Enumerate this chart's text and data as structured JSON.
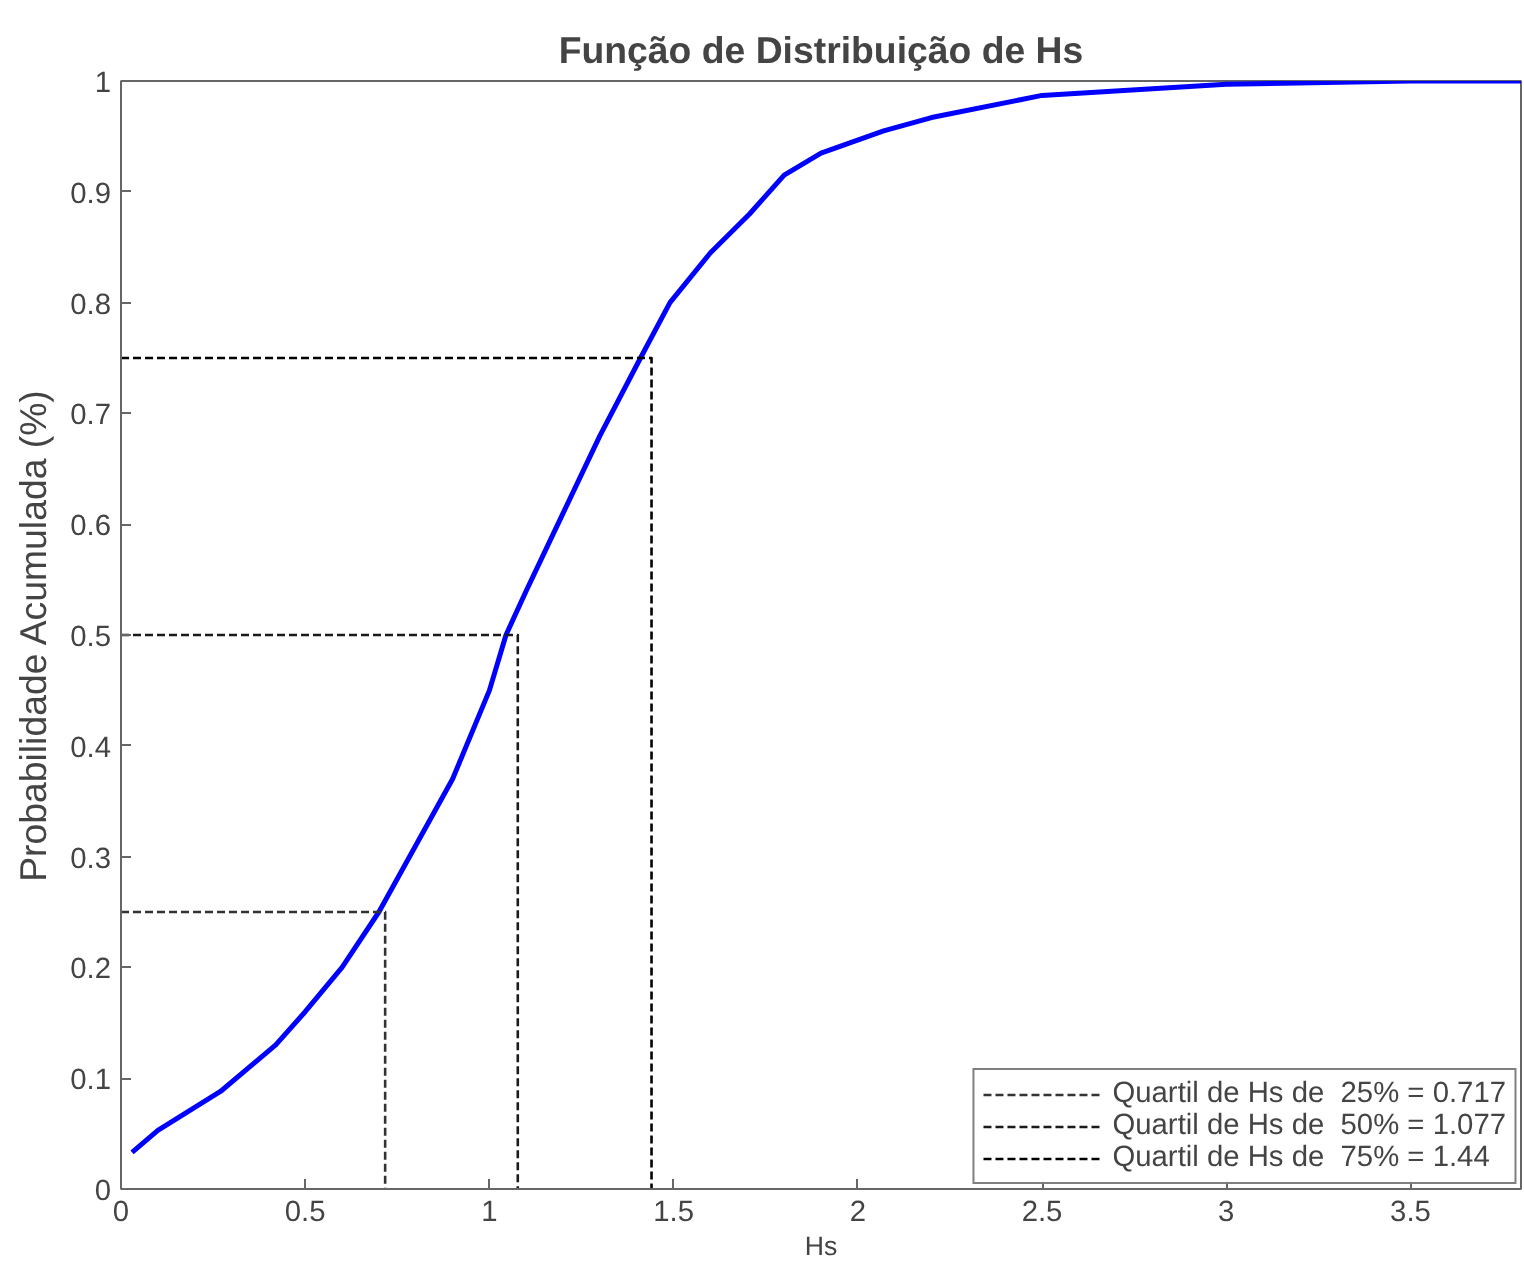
{
  "chart_data": {
    "type": "line",
    "title": "Função de Distribuição de Hs",
    "xlabel": "Hs",
    "ylabel": "Probabilidade Acumulada (%)",
    "xlim": [
      0,
      3.8
    ],
    "ylim": [
      0,
      1
    ],
    "xticks": [
      0,
      0.5,
      1,
      1.5,
      2,
      2.5,
      3,
      3.5
    ],
    "yticks": [
      0,
      0.1,
      0.2,
      0.3,
      0.4,
      0.5,
      0.6,
      0.7,
      0.8,
      0.9,
      1
    ],
    "grid": false,
    "legend": "bottom right",
    "marker": "none",
    "series": [
      {
        "color": "#0000ff",
        "line_style": "solid",
        "x": [
          0.03,
          0.1,
          0.27,
          0.42,
          0.5,
          0.6,
          0.7,
          0.8,
          0.9,
          1.0,
          1.045,
          1.1,
          1.2,
          1.3,
          1.41,
          1.49,
          1.6,
          1.706,
          1.8,
          1.9,
          2.07,
          2.2,
          2.5,
          3.0,
          3.5,
          3.8
        ],
        "values": [
          0.033,
          0.053,
          0.088,
          0.13,
          0.16,
          0.2,
          0.25,
          0.31,
          0.37,
          0.45,
          0.5,
          0.54,
          0.61,
          0.68,
          0.75,
          0.8,
          0.845,
          0.88,
          0.915,
          0.935,
          0.955,
          0.967,
          0.987,
          0.997,
          1.0,
          1.0
        ]
      },
      {
        "name": "Quartil de Hs de  25% = 0.717",
        "color": "#333333",
        "line_style": "dashed",
        "x": [
          0,
          0.717,
          0.717
        ],
        "values": [
          0.25,
          0.25,
          0
        ]
      },
      {
        "name": "Quartil de Hs de  50% = 1.077",
        "color": "#1a1a1a",
        "line_style": "dashed",
        "x": [
          0,
          1.077,
          1.077
        ],
        "values": [
          0.5,
          0.5,
          0
        ]
      },
      {
        "name": "Quartil de Hs de  75% = 1.44",
        "color": "#000000",
        "line_style": "dashed",
        "x": [
          0,
          1.44,
          1.44
        ],
        "values": [
          0.75,
          0.75,
          0
        ]
      }
    ]
  }
}
